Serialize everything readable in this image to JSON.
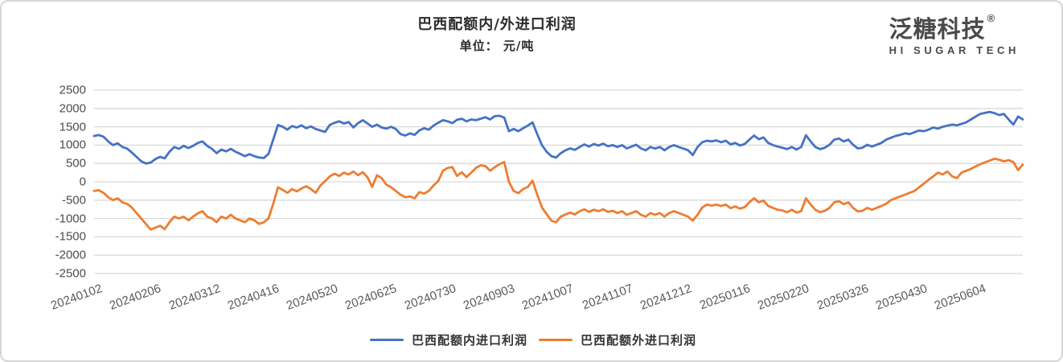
{
  "header": {
    "title": "巴西配额内/外进口利润",
    "subtitle": "单位： 元/吨"
  },
  "logo": {
    "name": "泛糖科技",
    "registered": "®",
    "tagline": "HI SUGAR TECH"
  },
  "chart_data": {
    "type": "line",
    "title": "巴西配额内/外进口利润",
    "unit_label": "单位： 元/吨",
    "grid": true,
    "legend_position": "bottom",
    "ylim": [
      -2500,
      2500
    ],
    "y_ticks": [
      2500,
      2000,
      1500,
      1000,
      500,
      0,
      -500,
      -1000,
      -1500,
      -2000,
      -2500
    ],
    "x_tick_labels": [
      "20240102",
      "20240206",
      "20240312",
      "20240416",
      "20240520",
      "20240625",
      "20240730",
      "20240903",
      "20241007",
      "20241107",
      "20241212",
      "20250116",
      "20250220",
      "20250326",
      "20250430",
      "20250604"
    ],
    "x_tick_step_days": 25,
    "sample_step_days": 2,
    "grid_color": "#d9d9d9",
    "series": [
      {
        "name": "巴西配额内进口利润",
        "color": "#4472C4",
        "values": [
          1250,
          1275,
          1230,
          1100,
          1000,
          1050,
          950,
          905,
          800,
          680,
          560,
          500,
          525,
          620,
          680,
          640,
          820,
          950,
          900,
          980,
          920,
          980,
          1060,
          1100,
          980,
          900,
          780,
          880,
          830,
          900,
          820,
          760,
          700,
          755,
          700,
          660,
          650,
          760,
          1150,
          1550,
          1500,
          1420,
          1520,
          1480,
          1540,
          1460,
          1510,
          1440,
          1400,
          1360,
          1550,
          1610,
          1650,
          1590,
          1630,
          1480,
          1600,
          1680,
          1590,
          1500,
          1560,
          1480,
          1450,
          1500,
          1440,
          1300,
          1260,
          1320,
          1280,
          1400,
          1460,
          1420,
          1530,
          1610,
          1680,
          1650,
          1600,
          1690,
          1720,
          1650,
          1700,
          1680,
          1720,
          1760,
          1700,
          1790,
          1800,
          1750,
          1380,
          1440,
          1380,
          1460,
          1530,
          1620,
          1300,
          1000,
          820,
          700,
          660,
          780,
          860,
          910,
          870,
          950,
          1020,
          960,
          1030,
          990,
          1040,
          970,
          1000,
          950,
          1000,
          910,
          960,
          1010,
          910,
          860,
          950,
          905,
          950,
          860,
          950,
          1000,
          950,
          905,
          860,
          730,
          950,
          1080,
          1120,
          1100,
          1130,
          1080,
          1120,
          1020,
          1060,
          990,
          1030,
          1150,
          1260,
          1160,
          1210,
          1060,
          1000,
          960,
          930,
          890,
          950,
          880,
          950,
          1270,
          1100,
          950,
          890,
          930,
          1010,
          1150,
          1180,
          1100,
          1150,
          1010,
          910,
          930,
          1010,
          960,
          1010,
          1060,
          1150,
          1200,
          1250,
          1280,
          1320,
          1300,
          1350,
          1400,
          1380,
          1420,
          1480,
          1450,
          1500,
          1530,
          1560,
          1540,
          1580,
          1620,
          1700,
          1780,
          1850,
          1880,
          1905,
          1870,
          1820,
          1850,
          1700,
          1560,
          1780,
          1700
        ]
      },
      {
        "name": "巴西配额外进口利润",
        "color": "#ED7D31",
        "values": [
          -250,
          -230,
          -300,
          -420,
          -500,
          -450,
          -560,
          -600,
          -700,
          -850,
          -1000,
          -1150,
          -1300,
          -1250,
          -1200,
          -1290,
          -1100,
          -950,
          -1000,
          -950,
          -1050,
          -950,
          -860,
          -800,
          -950,
          -1000,
          -1100,
          -950,
          -1000,
          -900,
          -1000,
          -1050,
          -1100,
          -1000,
          -1050,
          -1150,
          -1100,
          -1000,
          -600,
          -150,
          -220,
          -300,
          -200,
          -260,
          -180,
          -120,
          -200,
          -300,
          -100,
          20,
          150,
          220,
          160,
          250,
          200,
          280,
          180,
          260,
          120,
          -140,
          180,
          100,
          -80,
          -150,
          -250,
          -350,
          -420,
          -400,
          -450,
          -280,
          -320,
          -250,
          -100,
          20,
          300,
          380,
          400,
          160,
          260,
          130,
          250,
          380,
          450,
          430,
          300,
          400,
          480,
          540,
          0,
          -250,
          -310,
          -200,
          -140,
          30,
          -350,
          -700,
          -880,
          -1060,
          -1100,
          -950,
          -890,
          -840,
          -890,
          -800,
          -750,
          -820,
          -760,
          -800,
          -750,
          -820,
          -790,
          -850,
          -800,
          -900,
          -850,
          -800,
          -900,
          -950,
          -850,
          -900,
          -850,
          -950,
          -850,
          -800,
          -850,
          -900,
          -950,
          -1060,
          -900,
          -700,
          -620,
          -650,
          -620,
          -660,
          -620,
          -720,
          -670,
          -730,
          -690,
          -560,
          -450,
          -560,
          -510,
          -660,
          -710,
          -760,
          -780,
          -830,
          -760,
          -840,
          -800,
          -450,
          -620,
          -760,
          -830,
          -790,
          -710,
          -560,
          -530,
          -610,
          -560,
          -710,
          -810,
          -790,
          -710,
          -760,
          -710,
          -660,
          -600,
          -500,
          -450,
          -400,
          -350,
          -300,
          -250,
          -150,
          -50,
          50,
          150,
          250,
          200,
          280,
          150,
          100,
          250,
          300,
          350,
          420,
          480,
          530,
          580,
          630,
          600,
          560,
          590,
          540,
          320,
          470
        ]
      }
    ]
  }
}
